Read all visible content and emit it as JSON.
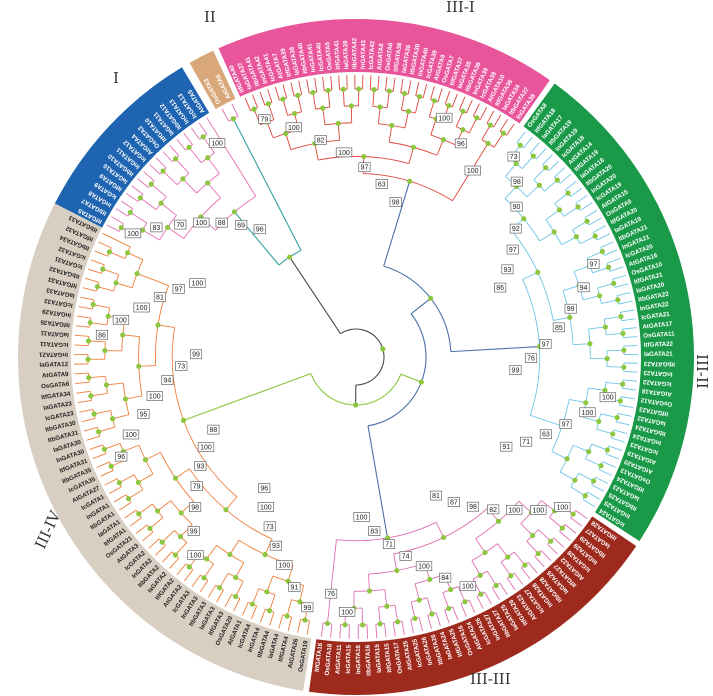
{
  "colors": {
    "group_I": "#1f64b0",
    "group_II": "#d9a87a",
    "group_III_I": "#e8559b",
    "group_III_II": "#1a9a48",
    "group_III_III": "#9e2a1e",
    "group_III_IV": "#d8cfc2",
    "branch_I": "#e36fb4",
    "branch_III_I": "#e0443a",
    "branch_III_II": "#6ec6e6",
    "branch_III_III": "#e06fb0",
    "branch_III_IV": "#ef7f3a",
    "node": "#8dc63f",
    "backbone": "#4a6fa5"
  },
  "clades": [
    {
      "id": "I",
      "label": "I",
      "color_key": "group_I",
      "branch_key": "branch_I",
      "leaves": [
        "ItfGATA5",
        "ItbGATA7",
        "InGATA8",
        "IcGATA9",
        "ItfGATA9",
        "IaGATA10",
        "ItbGATA10",
        "InGATA11",
        "IcGATA12",
        "AtGATA4",
        "OsGATA2",
        "ItfGATA10",
        "IaGATA11",
        "ItbGATA12",
        "InGATA13",
        "IcGATA13",
        "AtGATA5"
      ]
    },
    {
      "id": "II",
      "label": "II",
      "color_key": "group_II",
      "branch_key": "branch_I",
      "leaves": [
        "OsGATA3",
        "AtGATA6"
      ]
    },
    {
      "id": "III-I",
      "label": "III-I",
      "color_key": "group_III_I",
      "branch_key": "branch_III_I",
      "leaves": [
        "ItfGATA40",
        "IaGATA37",
        "ItbGATA41",
        "InGATA42",
        "IcGATA41",
        "AtGATA7",
        "ItfGATA39",
        "IaGATA38",
        "ItbGATA40",
        "InGATA41",
        "IcGATA40",
        "OsGATA5",
        "ItfGATA41",
        "IaGATA39",
        "ItbGATA42",
        "InGATA43",
        "IcGATA42",
        "AtGATA8",
        "OsGATA6",
        "ItfGATA38",
        "IaGATA36",
        "ItbGATA39",
        "InGATA40",
        "IcGATA39",
        "AtGATA9",
        "OsGATA7",
        "ItfGATA37",
        "IaGATA35",
        "ItbGATA38",
        "InGATA39",
        "IcGATA38",
        "AtGATA10",
        "ItfGATA36",
        "IaGATA34",
        "ItbGATA37",
        "InGATA38"
      ]
    },
    {
      "id": "III-II",
      "label": "III-II",
      "color_key": "group_III_II",
      "branch_key": "branch_III_II",
      "leaves": [
        "OsGATA8",
        "ItfGATA18",
        "IaGATA17",
        "ItbGATA19",
        "InGATA19",
        "IcGATA18",
        "AtGATA14",
        "ItfGATA19",
        "IaGATA18",
        "ItbGATA20",
        "InGATA20",
        "IcGATA19",
        "AtGATA15",
        "OsGATA9",
        "ItfGATA20",
        "IaGATA19",
        "ItbGATA21",
        "InGATA21",
        "IcGATA20",
        "AtGATA16",
        "OsGATA10",
        "ItfGATA21",
        "IaGATA20",
        "ItbGATA22",
        "InGATA22",
        "IcGATA21",
        "AtGATA17",
        "OsGATA11",
        "ItfGATA22",
        "IaGATA21",
        "ItbGATA23",
        "InGATA23",
        "IcGATA22",
        "AtGATA18",
        "OsGATA12",
        "ItfGATA23",
        "IaGATA22",
        "ItbGATA24",
        "InGATA24",
        "IcGATA23",
        "AtGATA19",
        "AtGATA20",
        "OsGATA13",
        "ItfGATA24",
        "IaGATA23",
        "ItbGATA25",
        "InGATA25",
        "IcGATA24"
      ]
    },
    {
      "id": "III-III",
      "label": "III-III",
      "color_key": "group_III_III",
      "branch_key": "branch_III_III",
      "leaves": [
        "ItfGATA28",
        "IaGATA27",
        "ItbGATA29",
        "InGATA29",
        "IcGATA28",
        "AtGATA22",
        "ItfGATA27",
        "IaGATA26",
        "ItbGATA28",
        "InGATA28",
        "IcGATA27",
        "AtGATA23",
        "ItfGATA26",
        "IaGATA25",
        "ItbGATA27",
        "InGATA27",
        "IcGATA26",
        "AtGATA24",
        "OsGATA16",
        "ItfGATA25",
        "IaGATA24",
        "ItbGATA26",
        "InGATA26",
        "IcGATA25",
        "AtGATA25",
        "OsGATA17",
        "ItfGATA15",
        "IaGATA15",
        "ItbGATA16",
        "InGATA16",
        "IcGATA15",
        "AtGATA11",
        "OsGATA18",
        "ItfGATA16"
      ]
    },
    {
      "id": "III-IV",
      "label": "III-IV",
      "color_key": "group_III_IV",
      "branch_key": "branch_III_IV",
      "leaves": [
        "OsGATA19",
        "AtGATA26",
        "ItfGATA4",
        "IaGATA4",
        "ItbGATA4",
        "InGATA4",
        "IcGATA4",
        "AtGATA1",
        "OsGATA20",
        "ItfGATA3",
        "IaGATA3",
        "ItbGATA3",
        "InGATA3",
        "IcGATA3",
        "AtGATA2",
        "ItfGATA2",
        "IaGATA2",
        "ItbGATA2",
        "InGATA2",
        "IcGATA2",
        "AtGATA3",
        "OsGATA21",
        "ItfGATA1",
        "IaGATA1",
        "ItbGATA1",
        "InGATA1",
        "IcGATA1",
        "AtGATA27",
        "IcGATA35",
        "ItbGATA35",
        "ItfGATA31",
        "InGATA30",
        "IaGATA30",
        "ItbGATA31",
        "ItbGATA30",
        "IcGATA23",
        "IaGATA23",
        "ItfGATA34",
        "OsGATA6",
        "AtGATA9",
        "IaGATA12",
        "InGATA21",
        "IcGATA11",
        "IaGATA11",
        "ItfGATA35",
        "InGATA29",
        "IcGATA33",
        "IaGATA33",
        "ItfGATA33",
        "ItbGATA32",
        "IcGATA31",
        "IcGATA32",
        "ItbGATA34",
        "ItfGATA32",
        "ItbGATA33"
      ]
    }
  ],
  "clade_labels": {
    "I": "I",
    "II": "II",
    "III-I": "III-I",
    "III-II": "III-II",
    "III-III": "III-III",
    "III-IV": "III-IV"
  },
  "bootstrap_values": [
    {
      "clade": "I",
      "values": [
        100,
        83,
        70,
        100,
        88,
        69,
        96,
        100
      ]
    },
    {
      "clade": "III-I",
      "values": [
        79,
        100,
        82,
        100,
        97,
        63,
        98,
        100,
        96,
        100
      ]
    },
    {
      "clade": "III-II",
      "values": [
        73,
        98,
        90,
        92,
        97,
        93,
        86,
        97,
        94,
        99,
        85,
        97,
        76,
        99,
        100,
        100,
        97,
        63,
        71,
        91
      ]
    },
    {
      "clade": "III-III",
      "values": [
        100,
        100,
        100,
        82,
        98,
        87,
        81,
        100,
        84,
        100,
        74,
        71,
        83,
        100,
        100,
        76
      ]
    },
    {
      "clade": "III-IV",
      "values": [
        99,
        91,
        100,
        93,
        73,
        100,
        96,
        100,
        99,
        98,
        79,
        93,
        100,
        88,
        96,
        100,
        95,
        100,
        94,
        73,
        99,
        86,
        100,
        100,
        81,
        97,
        100
      ]
    }
  ]
}
